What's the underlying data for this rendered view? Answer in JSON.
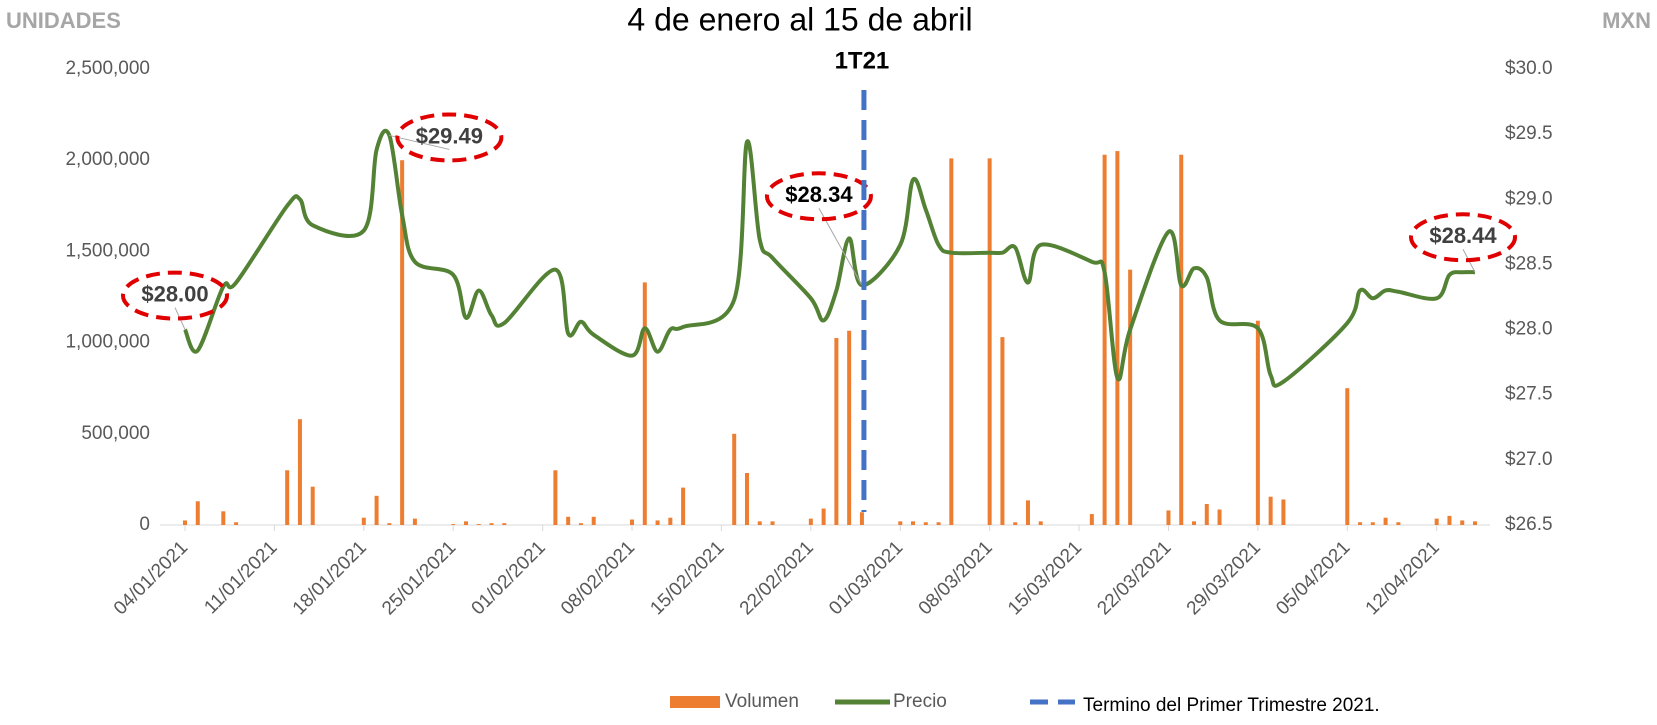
{
  "chart_data": {
    "type": "bar_line",
    "title": "4 de enero al 15 de abril",
    "y_label": "UNIDADES",
    "y2_label": "MXN",
    "x": [
      "04/01/2021",
      "05/01/2021",
      "07/01/2021",
      "08/01/2021",
      "12/01/2021",
      "13/01/2021",
      "14/01/2021",
      "18/01/2021",
      "19/01/2021",
      "20/01/2021",
      "21/01/2021",
      "22/01/2021",
      "25/01/2021",
      "26/01/2021",
      "27/01/2021",
      "28/01/2021",
      "29/01/2021",
      "02/02/2021",
      "03/02/2021",
      "04/02/2021",
      "05/02/2021",
      "08/02/2021",
      "09/02/2021",
      "10/02/2021",
      "11/02/2021",
      "12/02/2021",
      "16/02/2021",
      "17/02/2021",
      "18/02/2021",
      "19/02/2021",
      "22/02/2021",
      "23/02/2021",
      "24/02/2021",
      "25/02/2021",
      "26/02/2021",
      "01/03/2021",
      "02/03/2021",
      "03/03/2021",
      "04/03/2021",
      "05/03/2021",
      "08/03/2021",
      "09/03/2021",
      "10/03/2021",
      "11/03/2021",
      "12/03/2021",
      "16/03/2021",
      "17/03/2021",
      "18/03/2021",
      "19/03/2021",
      "22/03/2021",
      "23/03/2021",
      "24/03/2021",
      "25/03/2021",
      "26/03/2021",
      "29/03/2021",
      "30/03/2021",
      "31/03/2021",
      "05/04/2021",
      "06/04/2021",
      "07/04/2021",
      "08/04/2021",
      "09/04/2021",
      "12/04/2021",
      "13/04/2021",
      "14/04/2021",
      "15/04/2021"
    ],
    "xlim": [
      "04/01/2021",
      "15/04/2021"
    ],
    "xticks": [
      "04/01/2021",
      "11/01/2021",
      "18/01/2021",
      "25/01/2021",
      "01/02/2021",
      "08/02/2021",
      "15/02/2021",
      "22/02/2021",
      "01/03/2021",
      "08/03/2021",
      "15/03/2021",
      "22/03/2021",
      "29/03/2021",
      "05/04/2021",
      "12/04/2021"
    ],
    "series": [
      {
        "name": "Volumen",
        "type": "bar",
        "color": "#ed7d31",
        "values": [
          25000,
          130000,
          75000,
          15000,
          300000,
          580000,
          210000,
          40000,
          160000,
          10000,
          2000000,
          35000,
          5000,
          20000,
          5000,
          10000,
          10000,
          300000,
          45000,
          10000,
          45000,
          30000,
          1330000,
          25000,
          40000,
          205000,
          500000,
          285000,
          20000,
          20000,
          35000,
          90000,
          1025000,
          1065000,
          70000,
          20000,
          20000,
          15000,
          15000,
          2010000,
          2010000,
          1030000,
          15000,
          135000,
          20000,
          60000,
          2030000,
          2050000,
          1400000,
          80000,
          2030000,
          20000,
          115000,
          85000,
          1120000,
          155000,
          140000,
          750000,
          15000,
          15000,
          40000,
          15000,
          35000,
          50000,
          25000,
          20000
        ]
      },
      {
        "name": "Precio",
        "type": "line",
        "axis": "y2",
        "color": "#548235",
        "values": [
          28.0,
          27.84,
          28.33,
          28.36,
          28.95,
          29.0,
          28.8,
          28.76,
          29.38,
          29.49,
          28.88,
          28.52,
          28.42,
          28.09,
          28.3,
          28.11,
          28.05,
          28.46,
          27.97,
          28.06,
          27.96,
          27.8,
          28.01,
          27.83,
          28.0,
          28.02,
          28.23,
          29.44,
          28.69,
          28.55,
          28.24,
          28.07,
          28.3,
          28.7,
          28.34,
          28.65,
          29.15,
          28.92,
          28.65,
          28.59,
          28.59,
          28.59,
          28.63,
          28.36,
          28.65,
          28.52,
          28.44,
          27.63,
          28.0,
          28.75,
          28.34,
          28.47,
          28.4,
          28.07,
          28.01,
          27.65,
          27.6,
          28.05,
          28.3,
          28.24,
          28.3,
          28.29,
          28.24,
          28.42,
          28.44,
          28.44
        ],
        "value_labels": [
          "$28.00",
          null,
          null,
          null,
          null,
          null,
          null,
          null,
          null,
          "$29.49",
          null,
          null,
          null,
          null,
          null,
          null,
          null,
          null,
          null,
          null,
          null,
          null,
          null,
          null,
          null,
          null,
          null,
          null,
          null,
          null,
          null,
          null,
          null,
          null,
          "$28.34",
          null,
          null,
          null,
          null,
          null,
          null,
          null,
          null,
          null,
          null,
          null,
          null,
          null,
          null,
          null,
          null,
          null,
          null,
          null,
          null,
          null,
          null,
          null,
          null,
          null,
          null,
          null,
          null,
          null,
          null,
          "$28.44"
        ]
      }
    ],
    "reference_line": {
      "x": "26/02/2021",
      "label": "1T21",
      "name": "Termino del Primer Trimestre 2021.",
      "color": "#4472c4"
    },
    "ylim": [
      0,
      2500000
    ],
    "yticks": [
      0,
      {
        "value": 500000,
        "label": "500,000"
      },
      {
        "value": 1000000,
        "label": "1,000,000"
      },
      {
        "value": 1500000,
        "label": "1,500,000"
      },
      {
        "value": 2000000,
        "label": "2,000,000"
      },
      {
        "value": 2500000,
        "label": "2,500,000"
      }
    ],
    "y2lim": [
      26.5,
      30.0
    ],
    "y2ticks": [
      {
        "value": 26.5,
        "label": "$26.5"
      },
      {
        "value": 27.0,
        "label": "$27.0"
      },
      {
        "value": 27.5,
        "label": "$27.5"
      },
      {
        "value": 28.0,
        "label": "$28.0"
      },
      {
        "value": 28.5,
        "label": "$28.5"
      },
      {
        "value": 29.0,
        "label": "$29.0"
      },
      {
        "value": 29.5,
        "label": "$29.5"
      },
      {
        "value": 30.0,
        "label": "$30.0"
      }
    ],
    "annotation_color": "#e00000",
    "grid": false
  }
}
